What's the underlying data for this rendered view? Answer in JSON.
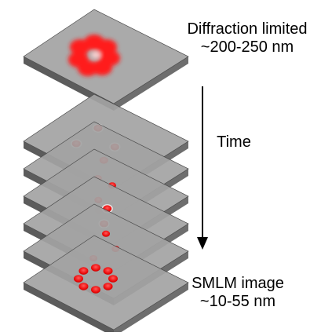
{
  "labels": {
    "top_line1": "Diffraction limited",
    "top_line2": "~200-250 nm",
    "time": "Time",
    "bottom_line1": "SMLM image",
    "bottom_line2": "~10-55 nm"
  },
  "colors": {
    "plane_top": "#a3a3a3",
    "plane_side": "#5c5c5c",
    "plane_edge": "#4a4a4a",
    "overlap": "#000000",
    "emitter": "#ff1a1a",
    "emitter_halo": "#e8e8e8",
    "arrow": "#000000"
  }
}
